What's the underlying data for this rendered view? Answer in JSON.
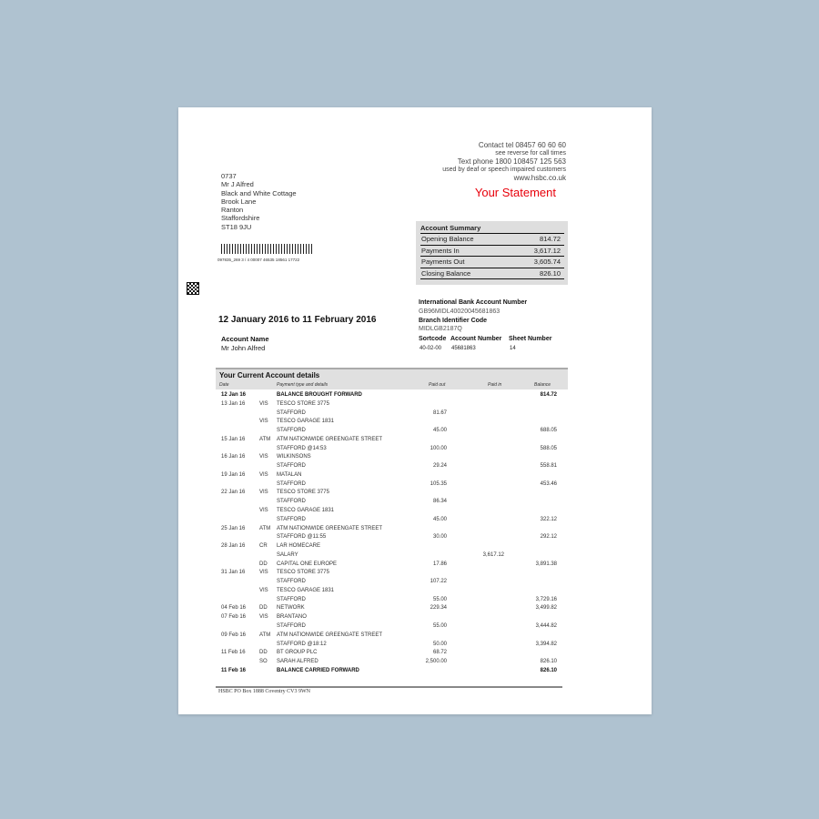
{
  "contact": {
    "tel": "Contact tel 08457 60 60 60",
    "call_times": "see reverse for call times",
    "textphone": "Text phone 1800 108457 125 563",
    "textphone_note": "used by deaf or speech impaired customers",
    "web": "www.hsbc.co.uk"
  },
  "statement_title": "Your Statement",
  "address": [
    "0737",
    "Mr J Alfred",
    "Black and White Cottage",
    "Brook Lane",
    "Ranton",
    "Staffordshire",
    "ST18 9JU"
  ],
  "barcode_number": "097835_269   3 /   4 00007  46535 18561 17722",
  "summary": {
    "title": "Account Summary",
    "rows": [
      {
        "label": "Opening Balance",
        "value": "814.72"
      },
      {
        "label": "Payments In",
        "value": "3,617.12"
      },
      {
        "label": "Payments Out",
        "value": "3,605.74"
      },
      {
        "label": "Closing Balance",
        "value": "826.10"
      }
    ]
  },
  "period": "12 January 2016 to 11 February 2016",
  "account_name": {
    "label": "Account Name",
    "value": "Mr John Alfred"
  },
  "iban": {
    "label": "International Bank Account Number",
    "value": "GB96MIDL40020045681863"
  },
  "bic": {
    "label": "Branch Identifier Code",
    "value": "MIDLGB2187Q"
  },
  "codes": {
    "sortcode_label": "Sortcode",
    "sortcode": "40-02-00",
    "account_number_label": "Account Number",
    "account_number": "45681863",
    "sheet_label": "Sheet Number",
    "sheet": "14"
  },
  "details": {
    "title": "Your Current Account details",
    "columns": {
      "date": "Date",
      "type": "Payment type and details",
      "paid_out": "Paid out",
      "paid_in": "Paid in",
      "balance": "Balance"
    },
    "rows": [
      {
        "date": "12 Jan 16",
        "type": "",
        "details": "BALANCE BROUGHT FORWARD",
        "out": "",
        "in": "",
        "bal": "814.72",
        "bold": true
      },
      {
        "date": "13 Jan 16",
        "type": "VIS",
        "details": "TESCO STORE 3775",
        "out": "",
        "in": "",
        "bal": ""
      },
      {
        "date": "",
        "type": "",
        "details": "STAFFORD",
        "out": "81.67",
        "in": "",
        "bal": ""
      },
      {
        "date": "",
        "type": "VIS",
        "details": "TESCO GARAGE 1831",
        "out": "",
        "in": "",
        "bal": ""
      },
      {
        "date": "",
        "type": "",
        "details": "STAFFORD",
        "out": "45.00",
        "in": "",
        "bal": "688.05"
      },
      {
        "date": "15 Jan 16",
        "type": "ATM",
        "details": "ATM NATIONWIDE GREENGATE STREET",
        "out": "",
        "in": "",
        "bal": ""
      },
      {
        "date": "",
        "type": "",
        "details": "STAFFORD @14:53",
        "out": "100.00",
        "in": "",
        "bal": "588.05"
      },
      {
        "date": "16 Jan 16",
        "type": "VIS",
        "details": "WILKINSONS",
        "out": "",
        "in": "",
        "bal": ""
      },
      {
        "date": "",
        "type": "",
        "details": "STAFFORD",
        "out": "29.24",
        "in": "",
        "bal": "558.81"
      },
      {
        "date": "19 Jan 16",
        "type": "VIS",
        "details": "MATALAN",
        "out": "",
        "in": "",
        "bal": ""
      },
      {
        "date": "",
        "type": "",
        "details": "STAFFORD",
        "out": "105.35",
        "in": "",
        "bal": "453.46"
      },
      {
        "date": "22 Jan 16",
        "type": "VIS",
        "details": "TESCO STORE 3775",
        "out": "",
        "in": "",
        "bal": ""
      },
      {
        "date": "",
        "type": "",
        "details": "STAFFORD",
        "out": "86.34",
        "in": "",
        "bal": ""
      },
      {
        "date": "",
        "type": "VIS",
        "details": "TESCO GARAGE 1831",
        "out": "",
        "in": "",
        "bal": ""
      },
      {
        "date": "",
        "type": "",
        "details": "STAFFORD",
        "out": "45.00",
        "in": "",
        "bal": "322.12"
      },
      {
        "date": "25 Jan 16",
        "type": "ATM",
        "details": "ATM NATIONWIDE GREENGATE STREET",
        "out": "",
        "in": "",
        "bal": ""
      },
      {
        "date": "",
        "type": "",
        "details": "STAFFORD @11:55",
        "out": "30.00",
        "in": "",
        "bal": "292.12"
      },
      {
        "date": "28 Jan 16",
        "type": "CR",
        "details": "LAR HOMECARE",
        "out": "",
        "in": "",
        "bal": ""
      },
      {
        "date": "",
        "type": "",
        "details": "SALARY",
        "out": "",
        "in": "3,617.12",
        "bal": ""
      },
      {
        "date": "",
        "type": "DD",
        "details": "CAPITAL ONE EUROPE",
        "out": "17.86",
        "in": "",
        "bal": "3,891.38"
      },
      {
        "date": "31 Jan 16",
        "type": "VIS",
        "details": "TESCO STORE 3775",
        "out": "",
        "in": "",
        "bal": ""
      },
      {
        "date": "",
        "type": "",
        "details": "STAFFORD",
        "out": "107.22",
        "in": "",
        "bal": ""
      },
      {
        "date": "",
        "type": "VIS",
        "details": "TESCO GARAGE 1831",
        "out": "",
        "in": "",
        "bal": ""
      },
      {
        "date": "",
        "type": "",
        "details": "STAFFORD",
        "out": "55.00",
        "in": "",
        "bal": "3,729.16"
      },
      {
        "date": "04 Feb 16",
        "type": "DD",
        "details": "NETWORK",
        "out": "229.34",
        "in": "",
        "bal": "3,499.82"
      },
      {
        "date": "07 Feb 16",
        "type": "VIS",
        "details": "BRANTANO",
        "out": "",
        "in": "",
        "bal": ""
      },
      {
        "date": "",
        "type": "",
        "details": "STAFFORD",
        "out": "55.00",
        "in": "",
        "bal": "3,444.82"
      },
      {
        "date": "09 Feb 16",
        "type": "ATM",
        "details": "ATM NATIONWIDE GREENGATE STREET",
        "out": "",
        "in": "",
        "bal": ""
      },
      {
        "date": "",
        "type": "",
        "details": "STAFFORD @18:12",
        "out": "50.00",
        "in": "",
        "bal": "3,394.82"
      },
      {
        "date": "11 Feb 16",
        "type": "DD",
        "details": "BT GROUP PLC",
        "out": "68.72",
        "in": "",
        "bal": ""
      },
      {
        "date": "",
        "type": "SO",
        "details": "SARAH ALFRED",
        "out": "2,500.00",
        "in": "",
        "bal": "826.10"
      },
      {
        "date": "11 Feb 16",
        "type": "",
        "details": "BALANCE CARRIED FORWARD",
        "out": "",
        "in": "",
        "bal": "826.10",
        "bold": true
      }
    ]
  },
  "footer": "HSBC PO Box 1888 Coventry CV3 9WN",
  "colors": {
    "background": "#afc2d0",
    "title_red": "#e8000b",
    "summary_bg": "#dedede"
  }
}
